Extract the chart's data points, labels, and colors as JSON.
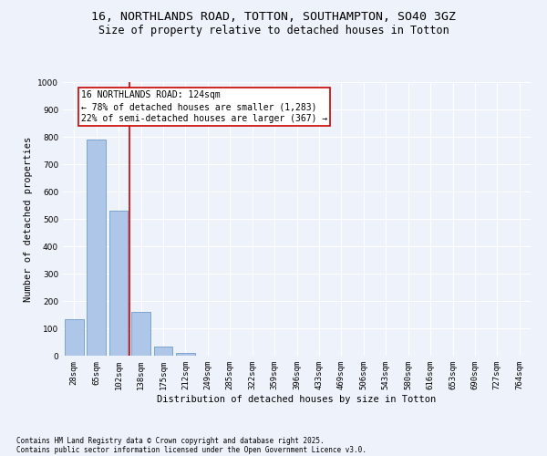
{
  "title_line1": "16, NORTHLANDS ROAD, TOTTON, SOUTHAMPTON, SO40 3GZ",
  "title_line2": "Size of property relative to detached houses in Totton",
  "xlabel": "Distribution of detached houses by size in Totton",
  "ylabel": "Number of detached properties",
  "categories": [
    "28sqm",
    "65sqm",
    "102sqm",
    "138sqm",
    "175sqm",
    "212sqm",
    "249sqm",
    "285sqm",
    "322sqm",
    "359sqm",
    "396sqm",
    "433sqm",
    "469sqm",
    "506sqm",
    "543sqm",
    "580sqm",
    "616sqm",
    "653sqm",
    "690sqm",
    "727sqm",
    "764sqm"
  ],
  "values": [
    135,
    790,
    530,
    160,
    35,
    10,
    0,
    0,
    0,
    0,
    0,
    0,
    0,
    0,
    0,
    0,
    0,
    0,
    0,
    0,
    0
  ],
  "bar_color": "#aec6e8",
  "bar_edge_color": "#5a8fc2",
  "vline_x": 2.5,
  "vline_color": "#cc0000",
  "annotation_line1": "16 NORTHLANDS ROAD: 124sqm",
  "annotation_line2": "← 78% of detached houses are smaller (1,283)",
  "annotation_line3": "22% of semi-detached houses are larger (367) →",
  "annotation_box_color": "#cc0000",
  "ylim": [
    0,
    1000
  ],
  "yticks": [
    0,
    100,
    200,
    300,
    400,
    500,
    600,
    700,
    800,
    900,
    1000
  ],
  "background_color": "#eef2fa",
  "plot_bg_color": "#eef2fa",
  "footer_line1": "Contains HM Land Registry data © Crown copyright and database right 2025.",
  "footer_line2": "Contains public sector information licensed under the Open Government Licence v3.0.",
  "title_fontsize": 9.5,
  "subtitle_fontsize": 8.5,
  "axis_label_fontsize": 7.5,
  "tick_fontsize": 6.5,
  "annotation_fontsize": 7,
  "footer_fontsize": 5.5
}
